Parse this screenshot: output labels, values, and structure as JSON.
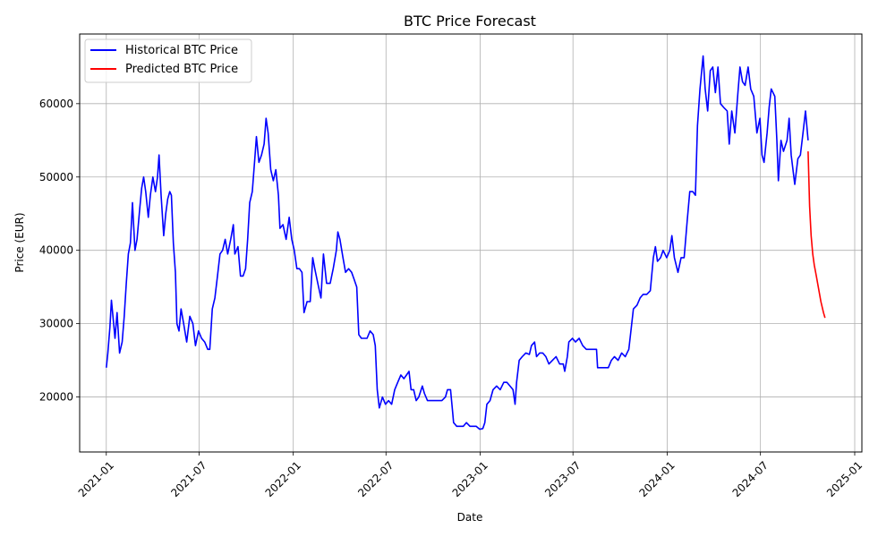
{
  "chart_data": {
    "type": "line",
    "title": "BTC Price Forecast",
    "xlabel": "Date",
    "ylabel": "Price (EUR)",
    "x_axis_type": "date",
    "xlim": [
      "2020-11-10",
      "2025-01-15"
    ],
    "ylim": [
      12500,
      69500
    ],
    "x_ticks": [
      "2021-01",
      "2021-07",
      "2022-01",
      "2022-07",
      "2023-01",
      "2023-07",
      "2024-01",
      "2024-07",
      "2025-01"
    ],
    "y_ticks": [
      20000,
      30000,
      40000,
      50000,
      60000
    ],
    "y_tick_labels": [
      "20000",
      "30000",
      "40000",
      "50000",
      "60000"
    ],
    "grid": true,
    "legend_position": "top-left",
    "series": [
      {
        "name": "Historical BTC Price",
        "color": "#0000ff",
        "points": [
          [
            "2021-01-01",
            24000
          ],
          [
            "2021-01-04",
            26000
          ],
          [
            "2021-01-08",
            29500
          ],
          [
            "2021-01-11",
            33200
          ],
          [
            "2021-01-14",
            31000
          ],
          [
            "2021-01-18",
            28000
          ],
          [
            "2021-01-22",
            31500
          ],
          [
            "2021-01-27",
            26000
          ],
          [
            "2021-02-01",
            27500
          ],
          [
            "2021-02-05",
            31000
          ],
          [
            "2021-02-09",
            35500
          ],
          [
            "2021-02-13",
            39500
          ],
          [
            "2021-02-17",
            41000
          ],
          [
            "2021-02-21",
            46500
          ],
          [
            "2021-02-26",
            40000
          ],
          [
            "2021-03-02",
            41500
          ],
          [
            "2021-03-07",
            45500
          ],
          [
            "2021-03-11",
            48500
          ],
          [
            "2021-03-15",
            50000
          ],
          [
            "2021-03-19",
            48000
          ],
          [
            "2021-03-24",
            44500
          ],
          [
            "2021-03-28",
            47500
          ],
          [
            "2021-04-02",
            50000
          ],
          [
            "2021-04-07",
            48000
          ],
          [
            "2021-04-11",
            50000
          ],
          [
            "2021-04-14",
            53000
          ],
          [
            "2021-04-18",
            47500
          ],
          [
            "2021-04-23",
            42000
          ],
          [
            "2021-04-27",
            45000
          ],
          [
            "2021-05-01",
            47000
          ],
          [
            "2021-05-05",
            48000
          ],
          [
            "2021-05-08",
            47500
          ],
          [
            "2021-05-12",
            41000
          ],
          [
            "2021-05-16",
            37000
          ],
          [
            "2021-05-19",
            30000
          ],
          [
            "2021-05-23",
            29000
          ],
          [
            "2021-05-27",
            32000
          ],
          [
            "2021-06-01",
            30000
          ],
          [
            "2021-06-07",
            27500
          ],
          [
            "2021-06-13",
            31000
          ],
          [
            "2021-06-19",
            30000
          ],
          [
            "2021-06-24",
            27000
          ],
          [
            "2021-06-30",
            29000
          ],
          [
            "2021-07-06",
            28000
          ],
          [
            "2021-07-12",
            27500
          ],
          [
            "2021-07-18",
            26500
          ],
          [
            "2021-07-22",
            26500
          ],
          [
            "2021-07-27",
            32000
          ],
          [
            "2021-08-01",
            33500
          ],
          [
            "2021-08-06",
            36500
          ],
          [
            "2021-08-11",
            39500
          ],
          [
            "2021-08-16",
            40000
          ],
          [
            "2021-08-21",
            41500
          ],
          [
            "2021-08-26",
            39500
          ],
          [
            "2021-09-01",
            41500
          ],
          [
            "2021-09-06",
            43500
          ],
          [
            "2021-09-09",
            39500
          ],
          [
            "2021-09-15",
            40500
          ],
          [
            "2021-09-20",
            36500
          ],
          [
            "2021-09-25",
            36500
          ],
          [
            "2021-09-30",
            37500
          ],
          [
            "2021-10-04",
            41500
          ],
          [
            "2021-10-08",
            46500
          ],
          [
            "2021-10-13",
            48000
          ],
          [
            "2021-10-18",
            52500
          ],
          [
            "2021-10-21",
            55500
          ],
          [
            "2021-10-26",
            52000
          ],
          [
            "2021-10-31",
            53000
          ],
          [
            "2021-11-05",
            54500
          ],
          [
            "2021-11-09",
            58000
          ],
          [
            "2021-11-13",
            56000
          ],
          [
            "2021-11-18",
            51000
          ],
          [
            "2021-11-23",
            49500
          ],
          [
            "2021-11-28",
            51000
          ],
          [
            "2021-12-03",
            47500
          ],
          [
            "2021-12-06",
            43000
          ],
          [
            "2021-12-12",
            43500
          ],
          [
            "2021-12-18",
            41500
          ],
          [
            "2021-12-24",
            44500
          ],
          [
            "2021-12-29",
            41500
          ],
          [
            "2022-01-03",
            40000
          ],
          [
            "2022-01-08",
            37500
          ],
          [
            "2022-01-13",
            37500
          ],
          [
            "2022-01-18",
            37000
          ],
          [
            "2022-01-22",
            31500
          ],
          [
            "2022-01-28",
            33000
          ],
          [
            "2022-02-03",
            33000
          ],
          [
            "2022-02-08",
            39000
          ],
          [
            "2022-02-12",
            37500
          ],
          [
            "2022-02-18",
            35500
          ],
          [
            "2022-02-24",
            33500
          ],
          [
            "2022-03-01",
            39500
          ],
          [
            "2022-03-07",
            35500
          ],
          [
            "2022-03-14",
            35500
          ],
          [
            "2022-03-20",
            37500
          ],
          [
            "2022-03-26",
            40000
          ],
          [
            "2022-03-29",
            42500
          ],
          [
            "2022-04-02",
            41500
          ],
          [
            "2022-04-08",
            39000
          ],
          [
            "2022-04-13",
            37000
          ],
          [
            "2022-04-19",
            37500
          ],
          [
            "2022-04-25",
            37000
          ],
          [
            "2022-04-30",
            36000
          ],
          [
            "2022-05-05",
            35000
          ],
          [
            "2022-05-09",
            28500
          ],
          [
            "2022-05-14",
            28000
          ],
          [
            "2022-05-19",
            28000
          ],
          [
            "2022-05-25",
            28000
          ],
          [
            "2022-05-31",
            29000
          ],
          [
            "2022-06-06",
            28500
          ],
          [
            "2022-06-10",
            27000
          ],
          [
            "2022-06-14",
            21000
          ],
          [
            "2022-06-18",
            18500
          ],
          [
            "2022-06-24",
            20000
          ],
          [
            "2022-06-30",
            19000
          ],
          [
            "2022-07-06",
            19500
          ],
          [
            "2022-07-12",
            19000
          ],
          [
            "2022-07-18",
            21000
          ],
          [
            "2022-07-24",
            22000
          ],
          [
            "2022-07-30",
            23000
          ],
          [
            "2022-08-05",
            22500
          ],
          [
            "2022-08-10",
            23000
          ],
          [
            "2022-08-15",
            23500
          ],
          [
            "2022-08-19",
            21000
          ],
          [
            "2022-08-24",
            21000
          ],
          [
            "2022-08-29",
            19500
          ],
          [
            "2022-09-03",
            20000
          ],
          [
            "2022-09-10",
            21500
          ],
          [
            "2022-09-14",
            20500
          ],
          [
            "2022-09-20",
            19500
          ],
          [
            "2022-09-26",
            19500
          ],
          [
            "2022-10-02",
            19500
          ],
          [
            "2022-10-10",
            19500
          ],
          [
            "2022-10-18",
            19500
          ],
          [
            "2022-10-25",
            20000
          ],
          [
            "2022-10-29",
            21000
          ],
          [
            "2022-11-04",
            21000
          ],
          [
            "2022-11-08",
            18000
          ],
          [
            "2022-11-10",
            16500
          ],
          [
            "2022-11-16",
            16000
          ],
          [
            "2022-11-22",
            16000
          ],
          [
            "2022-11-29",
            16000
          ],
          [
            "2022-12-05",
            16500
          ],
          [
            "2022-12-12",
            16000
          ],
          [
            "2022-12-18",
            16000
          ],
          [
            "2022-12-24",
            16000
          ],
          [
            "2022-12-31",
            15600
          ],
          [
            "2023-01-06",
            15700
          ],
          [
            "2023-01-10",
            16500
          ],
          [
            "2023-01-14",
            19000
          ],
          [
            "2023-01-20",
            19500
          ],
          [
            "2023-01-26",
            21000
          ],
          [
            "2023-02-02",
            21500
          ],
          [
            "2023-02-09",
            21000
          ],
          [
            "2023-02-16",
            22000
          ],
          [
            "2023-02-22",
            22000
          ],
          [
            "2023-02-28",
            21500
          ],
          [
            "2023-03-06",
            21000
          ],
          [
            "2023-03-10",
            19000
          ],
          [
            "2023-03-13",
            22000
          ],
          [
            "2023-03-18",
            25000
          ],
          [
            "2023-03-24",
            25500
          ],
          [
            "2023-03-31",
            26000
          ],
          [
            "2023-04-07",
            25800
          ],
          [
            "2023-04-11",
            27000
          ],
          [
            "2023-04-17",
            27500
          ],
          [
            "2023-04-21",
            25500
          ],
          [
            "2023-04-27",
            26000
          ],
          [
            "2023-05-03",
            26000
          ],
          [
            "2023-05-09",
            25500
          ],
          [
            "2023-05-15",
            24500
          ],
          [
            "2023-05-22",
            25000
          ],
          [
            "2023-05-29",
            25500
          ],
          [
            "2023-06-05",
            24500
          ],
          [
            "2023-06-12",
            24500
          ],
          [
            "2023-06-15",
            23500
          ],
          [
            "2023-06-20",
            25500
          ],
          [
            "2023-06-23",
            27500
          ],
          [
            "2023-06-30",
            28000
          ],
          [
            "2023-07-06",
            27500
          ],
          [
            "2023-07-13",
            28000
          ],
          [
            "2023-07-20",
            27000
          ],
          [
            "2023-07-27",
            26500
          ],
          [
            "2023-08-03",
            26500
          ],
          [
            "2023-08-10",
            26500
          ],
          [
            "2023-08-16",
            26500
          ],
          [
            "2023-08-18",
            24000
          ],
          [
            "2023-08-25",
            24000
          ],
          [
            "2023-09-01",
            24000
          ],
          [
            "2023-09-08",
            24000
          ],
          [
            "2023-09-14",
            25000
          ],
          [
            "2023-09-20",
            25500
          ],
          [
            "2023-09-27",
            25000
          ],
          [
            "2023-10-04",
            26000
          ],
          [
            "2023-10-11",
            25500
          ],
          [
            "2023-10-18",
            26500
          ],
          [
            "2023-10-23",
            29500
          ],
          [
            "2023-10-27",
            32000
          ],
          [
            "2023-11-03",
            32500
          ],
          [
            "2023-11-09",
            33500
          ],
          [
            "2023-11-15",
            34000
          ],
          [
            "2023-11-22",
            34000
          ],
          [
            "2023-11-29",
            34500
          ],
          [
            "2023-12-05",
            39000
          ],
          [
            "2023-12-09",
            40500
          ],
          [
            "2023-12-13",
            38500
          ],
          [
            "2023-12-19",
            39000
          ],
          [
            "2023-12-24",
            40000
          ],
          [
            "2023-12-31",
            39000
          ],
          [
            "2024-01-06",
            40000
          ],
          [
            "2024-01-10",
            42000
          ],
          [
            "2024-01-15",
            39000
          ],
          [
            "2024-01-22",
            37000
          ],
          [
            "2024-01-28",
            39000
          ],
          [
            "2024-02-03",
            39000
          ],
          [
            "2024-02-09",
            44000
          ],
          [
            "2024-02-14",
            48000
          ],
          [
            "2024-02-20",
            48000
          ],
          [
            "2024-02-25",
            47500
          ],
          [
            "2024-02-29",
            57000
          ],
          [
            "2024-03-05",
            62000
          ],
          [
            "2024-03-11",
            66500
          ],
          [
            "2024-03-15",
            62000
          ],
          [
            "2024-03-20",
            59000
          ],
          [
            "2024-03-25",
            64500
          ],
          [
            "2024-03-30",
            65000
          ],
          [
            "2024-04-04",
            61500
          ],
          [
            "2024-04-09",
            65000
          ],
          [
            "2024-04-14",
            60000
          ],
          [
            "2024-04-20",
            59500
          ],
          [
            "2024-04-27",
            59000
          ],
          [
            "2024-05-01",
            54500
          ],
          [
            "2024-05-06",
            59000
          ],
          [
            "2024-05-12",
            56000
          ],
          [
            "2024-05-18",
            61500
          ],
          [
            "2024-05-22",
            65000
          ],
          [
            "2024-05-27",
            63000
          ],
          [
            "2024-06-01",
            62500
          ],
          [
            "2024-06-07",
            65000
          ],
          [
            "2024-06-12",
            62000
          ],
          [
            "2024-06-18",
            61000
          ],
          [
            "2024-06-24",
            56000
          ],
          [
            "2024-06-30",
            58000
          ],
          [
            "2024-07-04",
            53000
          ],
          [
            "2024-07-08",
            52000
          ],
          [
            "2024-07-14",
            56000
          ],
          [
            "2024-07-18",
            59500
          ],
          [
            "2024-07-22",
            62000
          ],
          [
            "2024-07-29",
            61000
          ],
          [
            "2024-08-02",
            55000
          ],
          [
            "2024-08-05",
            49500
          ],
          [
            "2024-08-10",
            55000
          ],
          [
            "2024-08-15",
            53500
          ],
          [
            "2024-08-22",
            55000
          ],
          [
            "2024-08-26",
            58000
          ],
          [
            "2024-08-30",
            53000
          ],
          [
            "2024-09-06",
            49000
          ],
          [
            "2024-09-12",
            52500
          ],
          [
            "2024-09-17",
            53000
          ],
          [
            "2024-09-22",
            56000
          ],
          [
            "2024-09-27",
            59000
          ],
          [
            "2024-10-02",
            55000
          ]
        ]
      },
      {
        "name": "Predicted BTC Price",
        "color": "#ff0000",
        "points": [
          [
            "2024-10-02",
            53500
          ],
          [
            "2024-10-05",
            46000
          ],
          [
            "2024-10-08",
            42000
          ],
          [
            "2024-10-11",
            39500
          ],
          [
            "2024-10-14",
            38000
          ],
          [
            "2024-10-18",
            36500
          ],
          [
            "2024-10-22",
            35000
          ],
          [
            "2024-10-27",
            33000
          ],
          [
            "2024-11-01",
            31500
          ],
          [
            "2024-11-04",
            30800
          ]
        ]
      }
    ]
  }
}
